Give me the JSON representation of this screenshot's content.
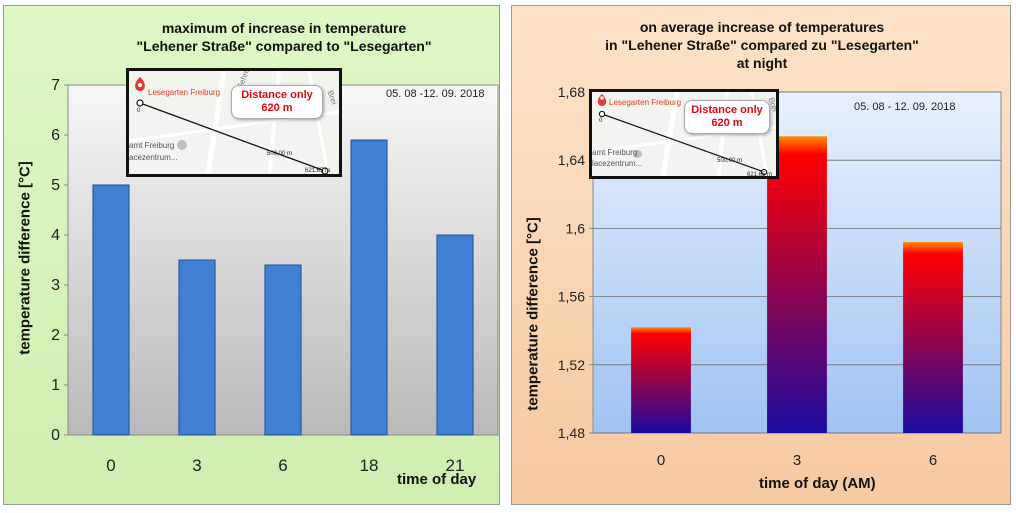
{
  "charts": [
    {
      "title_lines": [
        "maximum of increase in temperature",
        "\"Lehener Straße\" compared to \"Lesegarten\""
      ],
      "period": "05. 08 -12. 09. 2018",
      "inset": {
        "place": "Lesegarten Freiburg",
        "distance_lines": [
          "Distance only",
          "620 m"
        ],
        "scale_mid": "500,00 m",
        "scale_end": "621,65 m",
        "zero": "0",
        "street_top": "Fehre",
        "street_right": "Brei",
        "poi_lines": [
          "amt Freiburg",
          "acezentrum..."
        ]
      }
    },
    {
      "title_lines": [
        "on average increase of temperatures",
        "in \"Lehener Straße\" compared zu \"Lesegarten\"",
        "at night"
      ],
      "period": "05. 08 - 12. 09. 2018",
      "inset": {
        "place": "Lesegarten Freiburg",
        "distance_lines": [
          "Distance only",
          "620 m"
        ],
        "scale_mid": "500,00 m",
        "scale_end": "621,65 m",
        "zero": "0",
        "street_right": "Brei",
        "poi_lines": [
          "amt Freiburg",
          "lacezentrum..."
        ]
      }
    }
  ],
  "chart_data": [
    {
      "type": "bar",
      "title": "maximum of increase in temperature \"Lehener Straße\" compared to \"Lesegarten\"",
      "categories": [
        "0",
        "3",
        "6",
        "18",
        "21"
      ],
      "values": [
        5.0,
        3.5,
        3.4,
        5.9,
        4.0
      ],
      "ylim": [
        0,
        7
      ],
      "yticks": [
        "0",
        "1",
        "2",
        "3",
        "4",
        "5",
        "6",
        "7"
      ],
      "xlabel": "time of day",
      "ylabel": "temperature difference [°C]",
      "grid": false,
      "colors": {
        "bar": "#3f7fd4",
        "bar_edge": "#1f4f9a"
      }
    },
    {
      "type": "bar",
      "title": "on average increase of temperatures in \"Lehener Straße\" compared zu \"Lesegarten\" at night",
      "categories": [
        "0",
        "3",
        "6"
      ],
      "values": [
        1.542,
        1.654,
        1.592
      ],
      "ylim": [
        1.48,
        1.68
      ],
      "yticks": [
        "1,48",
        "1,52",
        "1,56",
        "1,6",
        "1,64",
        "1,68"
      ],
      "xlabel": "time of day (AM)",
      "ylabel": "temperature difference [°C]",
      "grid": true,
      "colors": {
        "bar_top": "#ff8c00",
        "bar_mid": "#ff0000",
        "bar_bottom": "#1a0aa0"
      }
    }
  ]
}
